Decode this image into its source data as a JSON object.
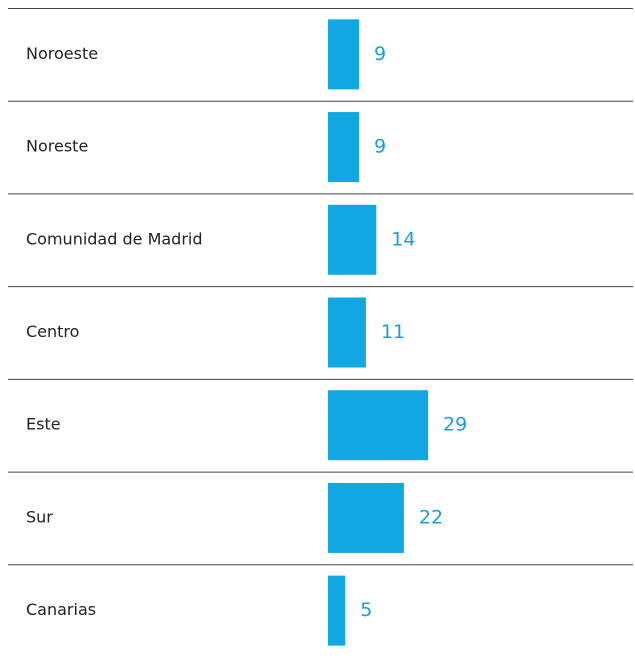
{
  "chart_data": {
    "type": "bar",
    "orientation": "horizontal",
    "categories": [
      "Noroeste",
      "Noreste",
      "Comunidad de Madrid",
      "Centro",
      "Este",
      "Sur",
      "Canarias"
    ],
    "values": [
      9,
      9,
      14,
      11,
      29,
      22,
      5
    ],
    "color": "#10a7e2"
  }
}
